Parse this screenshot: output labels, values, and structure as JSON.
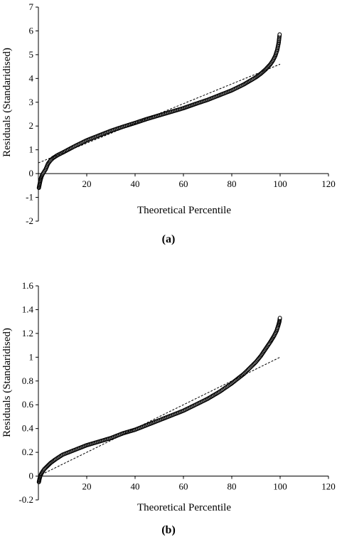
{
  "chart_data": [
    {
      "type": "scatter",
      "panel_label": "(a)",
      "xlabel": "Theoretical Percentile",
      "ylabel": "Residuals (Standaridised)",
      "xlim": [
        0,
        120
      ],
      "ylim": [
        -2,
        7
      ],
      "xticks": [
        20,
        40,
        60,
        80,
        100,
        120
      ],
      "yticks": [
        -2,
        -1,
        0,
        1,
        2,
        3,
        4,
        5,
        6,
        7
      ],
      "grid": false,
      "legend": "none",
      "series": [
        {
          "points": [
            [
              0.2,
              -0.6
            ],
            [
              0.5,
              -0.45
            ],
            [
              0.8,
              -0.3
            ],
            [
              1.2,
              -0.15
            ],
            [
              1.6,
              -0.05
            ],
            [
              2.0,
              0.02
            ],
            [
              2.5,
              0.1
            ],
            [
              3.0,
              0.18
            ],
            [
              3.5,
              0.3
            ],
            [
              4.0,
              0.42
            ],
            [
              5.0,
              0.55
            ],
            [
              6.0,
              0.65
            ],
            [
              8.0,
              0.78
            ],
            [
              10.0,
              0.88
            ],
            [
              15.0,
              1.15
            ],
            [
              20.0,
              1.4
            ],
            [
              25.0,
              1.6
            ],
            [
              30.0,
              1.8
            ],
            [
              35.0,
              1.97
            ],
            [
              40.0,
              2.13
            ],
            [
              45.0,
              2.3
            ],
            [
              50.0,
              2.45
            ],
            [
              55.0,
              2.6
            ],
            [
              60.0,
              2.75
            ],
            [
              65.0,
              2.93
            ],
            [
              70.0,
              3.1
            ],
            [
              75.0,
              3.3
            ],
            [
              80.0,
              3.5
            ],
            [
              85.0,
              3.75
            ],
            [
              88.0,
              3.93
            ],
            [
              90.0,
              4.05
            ],
            [
              92.0,
              4.2
            ],
            [
              94.0,
              4.38
            ],
            [
              96.0,
              4.6
            ],
            [
              97.0,
              4.75
            ],
            [
              98.0,
              4.95
            ],
            [
              98.8,
              5.2
            ],
            [
              99.4,
              5.5
            ],
            [
              99.8,
              5.85
            ]
          ]
        }
      ],
      "trendline": {
        "x": [
          0,
          100
        ],
        "y": [
          0.45,
          4.6
        ]
      }
    },
    {
      "type": "scatter",
      "panel_label": "(b)",
      "xlabel": "Theoretical Percentile",
      "ylabel": "Residuals (Standaridised)",
      "xlim": [
        0,
        120
      ],
      "ylim": [
        -0.2,
        1.6
      ],
      "xticks": [
        20,
        40,
        60,
        80,
        100,
        120
      ],
      "yticks": [
        -0.2,
        0,
        0.2,
        0.4,
        0.6,
        0.8,
        1,
        1.2,
        1.4,
        1.6
      ],
      "grid": false,
      "legend": "none",
      "series": [
        {
          "points": [
            [
              0.2,
              -0.05
            ],
            [
              0.5,
              -0.02
            ],
            [
              0.8,
              0.0
            ],
            [
              1.2,
              0.02
            ],
            [
              1.8,
              0.04
            ],
            [
              2.5,
              0.06
            ],
            [
              3.5,
              0.08
            ],
            [
              5.0,
              0.11
            ],
            [
              7.0,
              0.14
            ],
            [
              10.0,
              0.18
            ],
            [
              15.0,
              0.22
            ],
            [
              20.0,
              0.26
            ],
            [
              25.0,
              0.29
            ],
            [
              30.0,
              0.32
            ],
            [
              35.0,
              0.36
            ],
            [
              40.0,
              0.39
            ],
            [
              45.0,
              0.43
            ],
            [
              50.0,
              0.47
            ],
            [
              55.0,
              0.51
            ],
            [
              60.0,
              0.55
            ],
            [
              65.0,
              0.6
            ],
            [
              70.0,
              0.65
            ],
            [
              75.0,
              0.71
            ],
            [
              80.0,
              0.78
            ],
            [
              85.0,
              0.86
            ],
            [
              88.0,
              0.92
            ],
            [
              90.0,
              0.96
            ],
            [
              92.0,
              1.01
            ],
            [
              94.0,
              1.07
            ],
            [
              96.0,
              1.13
            ],
            [
              97.5,
              1.18
            ],
            [
              98.5,
              1.22
            ],
            [
              99.3,
              1.27
            ],
            [
              99.7,
              1.3
            ],
            [
              99.9,
              1.33
            ]
          ]
        }
      ],
      "trendline": {
        "x": [
          0,
          100
        ],
        "y": [
          0.0,
          1.0
        ]
      }
    }
  ]
}
